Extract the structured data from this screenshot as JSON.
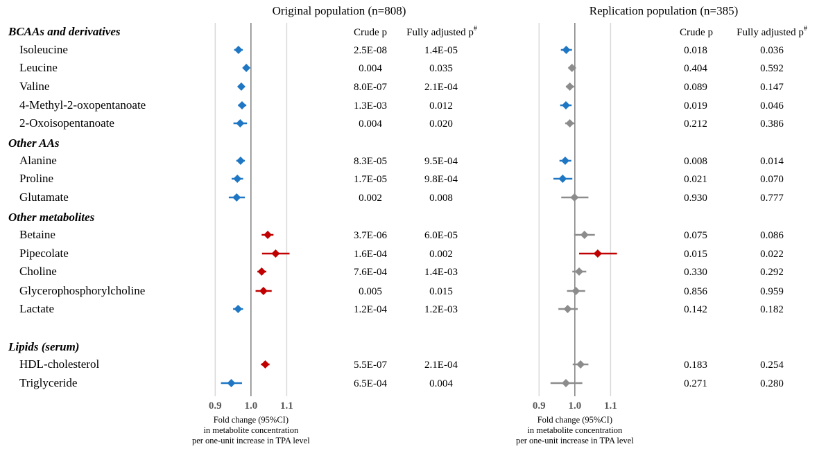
{
  "titles": {
    "original": "Original population (n=808)",
    "replication": "Replication population (n=385)"
  },
  "columns": {
    "crude": "Crude p",
    "adjusted": "Fully adjusted p",
    "adjusted_mark": "#"
  },
  "groups": [
    "BCAAs and derivatives",
    "Other AAs",
    "Other metabolites",
    "Lipids (serum)"
  ],
  "axis": {
    "ticks": [
      "0.9",
      "1.0",
      "1.1"
    ],
    "label_lines": [
      "Fold change (95%CI)",
      "in metabolite concentration",
      "per one-unit increase in TPA level"
    ]
  },
  "colors": {
    "decrease": "#1f77c4",
    "increase": "#c00000",
    "nonsignificant": "#8c8c8c",
    "reference_line": "#7f7f7f",
    "gridline": "#d9d9d9"
  },
  "chart_data": [
    {
      "type": "forest",
      "title": "Original population (n=808)",
      "xlabel": "Fold change (95%CI) in metabolite concentration per one-unit increase in TPA level",
      "xlim": [
        0.88,
        1.14
      ],
      "xticks": [
        0.9,
        1.0,
        1.1
      ],
      "reference": 1.0,
      "rows": [
        {
          "group": 0,
          "label": "Isoleucine",
          "est": 0.965,
          "lo": 0.953,
          "hi": 0.977,
          "color": "decrease",
          "crude_p": "2.5E-08",
          "adj_p": "1.4E-05"
        },
        {
          "group": 0,
          "label": "Leucine",
          "est": 0.987,
          "lo": 0.98,
          "hi": 0.993,
          "color": "decrease",
          "crude_p": "0.004",
          "adj_p": "0.035"
        },
        {
          "group": 0,
          "label": "Valine",
          "est": 0.973,
          "lo": 0.964,
          "hi": 0.981,
          "color": "decrease",
          "crude_p": "8.0E-07",
          "adj_p": "2.1E-04"
        },
        {
          "group": 0,
          "label": "4-Methyl-2-oxopentanoate",
          "est": 0.975,
          "lo": 0.964,
          "hi": 0.987,
          "color": "decrease",
          "crude_p": "1.3E-03",
          "adj_p": "0.012"
        },
        {
          "group": 0,
          "label": "2-Oxoisopentanoate",
          "est": 0.97,
          "lo": 0.951,
          "hi": 0.989,
          "color": "decrease",
          "crude_p": "0.004",
          "adj_p": "0.020"
        },
        {
          "group": 1,
          "label": "Alanine",
          "est": 0.971,
          "lo": 0.959,
          "hi": 0.983,
          "color": "decrease",
          "crude_p": "8.3E-05",
          "adj_p": "9.5E-04"
        },
        {
          "group": 1,
          "label": "Proline",
          "est": 0.962,
          "lo": 0.946,
          "hi": 0.978,
          "color": "decrease",
          "crude_p": "1.7E-05",
          "adj_p": "9.8E-04"
        },
        {
          "group": 1,
          "label": "Glutamate",
          "est": 0.96,
          "lo": 0.938,
          "hi": 0.983,
          "color": "decrease",
          "crude_p": "0.002",
          "adj_p": "0.008"
        },
        {
          "group": 2,
          "label": "Betaine",
          "est": 1.047,
          "lo": 1.03,
          "hi": 1.063,
          "color": "increase",
          "crude_p": "3.7E-06",
          "adj_p": "6.0E-05"
        },
        {
          "group": 2,
          "label": "Pipecolate",
          "est": 1.069,
          "lo": 1.031,
          "hi": 1.108,
          "color": "increase",
          "crude_p": "1.6E-04",
          "adj_p": "0.002"
        },
        {
          "group": 2,
          "label": "Choline",
          "est": 1.03,
          "lo": 1.018,
          "hi": 1.043,
          "color": "increase",
          "crude_p": "7.6E-04",
          "adj_p": "1.4E-03"
        },
        {
          "group": 2,
          "label": "Glycerophosphorylcholine",
          "est": 1.035,
          "lo": 1.013,
          "hi": 1.058,
          "color": "increase",
          "crude_p": "0.005",
          "adj_p": "0.015"
        },
        {
          "group": 2,
          "label": "Lactate",
          "est": 0.964,
          "lo": 0.95,
          "hi": 0.978,
          "color": "decrease",
          "crude_p": "1.2E-04",
          "adj_p": "1.2E-03"
        },
        {
          "group": 3,
          "label": "HDL-cholesterol",
          "est": 1.04,
          "lo": 1.028,
          "hi": 1.052,
          "color": "increase",
          "crude_p": "5.5E-07",
          "adj_p": "2.1E-04"
        },
        {
          "group": 3,
          "label": "Triglyceride",
          "est": 0.945,
          "lo": 0.916,
          "hi": 0.975,
          "color": "decrease",
          "crude_p": "6.5E-04",
          "adj_p": "0.004"
        }
      ]
    },
    {
      "type": "forest",
      "title": "Replication population (n=385)",
      "xlabel": "Fold change (95%CI) in metabolite concentration per one-unit increase in TPA level",
      "xlim": [
        0.88,
        1.14
      ],
      "xticks": [
        0.9,
        1.0,
        1.1
      ],
      "reference": 1.0,
      "rows": [
        {
          "group": 0,
          "label": "Isoleucine",
          "est": 0.976,
          "lo": 0.961,
          "hi": 0.992,
          "color": "decrease",
          "crude_p": "0.018",
          "adj_p": "0.036"
        },
        {
          "group": 0,
          "label": "Leucine",
          "est": 0.992,
          "lo": 0.982,
          "hi": 1.003,
          "color": "nonsignificant",
          "crude_p": "0.404",
          "adj_p": "0.592"
        },
        {
          "group": 0,
          "label": "Valine",
          "est": 0.986,
          "lo": 0.975,
          "hi": 0.998,
          "color": "nonsignificant",
          "crude_p": "0.089",
          "adj_p": "0.147"
        },
        {
          "group": 0,
          "label": "4-Methyl-2-oxopentanoate",
          "est": 0.975,
          "lo": 0.959,
          "hi": 0.991,
          "color": "decrease",
          "crude_p": "0.019",
          "adj_p": "0.046"
        },
        {
          "group": 0,
          "label": "2-Oxoisopentanoate",
          "est": 0.986,
          "lo": 0.973,
          "hi": 1.0,
          "color": "nonsignificant",
          "crude_p": "0.212",
          "adj_p": "0.386"
        },
        {
          "group": 1,
          "label": "Alanine",
          "est": 0.973,
          "lo": 0.957,
          "hi": 0.99,
          "color": "decrease",
          "crude_p": "0.008",
          "adj_p": "0.014"
        },
        {
          "group": 1,
          "label": "Proline",
          "est": 0.966,
          "lo": 0.94,
          "hi": 0.993,
          "color": "decrease",
          "crude_p": "0.021",
          "adj_p": "0.070"
        },
        {
          "group": 1,
          "label": "Glutamate",
          "est": 0.999,
          "lo": 0.962,
          "hi": 1.038,
          "color": "nonsignificant",
          "crude_p": "0.930",
          "adj_p": "0.777"
        },
        {
          "group": 2,
          "label": "Betaine",
          "est": 1.027,
          "lo": 0.998,
          "hi": 1.056,
          "color": "nonsignificant",
          "crude_p": "0.075",
          "adj_p": "0.086"
        },
        {
          "group": 2,
          "label": "Pipecolate",
          "est": 1.064,
          "lo": 1.012,
          "hi": 1.118,
          "color": "increase",
          "crude_p": "0.015",
          "adj_p": "0.022"
        },
        {
          "group": 2,
          "label": "Choline",
          "est": 1.012,
          "lo": 0.993,
          "hi": 1.032,
          "color": "nonsignificant",
          "crude_p": "0.330",
          "adj_p": "0.292"
        },
        {
          "group": 2,
          "label": "Glycerophosphorylcholine",
          "est": 1.003,
          "lo": 0.978,
          "hi": 1.029,
          "color": "nonsignificant",
          "crude_p": "0.856",
          "adj_p": "0.959"
        },
        {
          "group": 2,
          "label": "Lactate",
          "est": 0.98,
          "lo": 0.954,
          "hi": 1.008,
          "color": "nonsignificant",
          "crude_p": "0.142",
          "adj_p": "0.182"
        },
        {
          "group": 3,
          "label": "HDL-cholesterol",
          "est": 1.016,
          "lo": 0.994,
          "hi": 1.038,
          "color": "nonsignificant",
          "crude_p": "0.183",
          "adj_p": "0.254"
        },
        {
          "group": 3,
          "label": "Triglyceride",
          "est": 0.975,
          "lo": 0.932,
          "hi": 1.021,
          "color": "nonsignificant",
          "crude_p": "0.271",
          "adj_p": "0.280"
        }
      ]
    }
  ]
}
